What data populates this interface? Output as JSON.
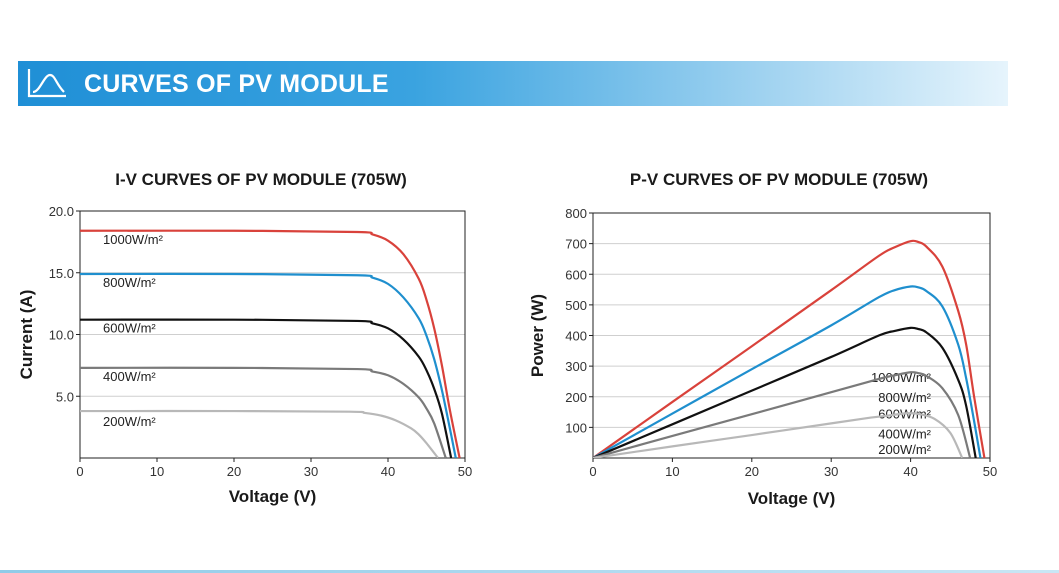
{
  "header": {
    "title": "CURVES OF PV MODULE",
    "icon": "curve-chart-icon"
  },
  "chart_data": [
    {
      "type": "line",
      "title": "I-V CURVES OF PV MODULE (705W)",
      "xlabel": "Voltage (V)",
      "ylabel": "Current (A)",
      "xlim": [
        0,
        50
      ],
      "ylim": [
        0,
        20
      ],
      "xticks": [
        "0",
        "10",
        "20",
        "30",
        "40",
        "50"
      ],
      "yticks": [
        "20.0",
        "15.0",
        "10.0",
        "5.0"
      ],
      "grid": true,
      "series": [
        {
          "name": "1000W/m²",
          "color": "#d9423b",
          "x": [
            0,
            20,
            36,
            38,
            40,
            42,
            44,
            45,
            46,
            47,
            48,
            49.3
          ],
          "y": [
            18.4,
            18.4,
            18.3,
            18.1,
            17.6,
            16.5,
            14.5,
            12.8,
            10.5,
            7.5,
            4.0,
            0
          ]
        },
        {
          "name": "800W/m²",
          "color": "#1f8fce",
          "x": [
            0,
            20,
            36,
            38,
            40,
            42,
            44,
            45,
            46,
            47,
            48,
            48.8
          ],
          "y": [
            14.9,
            14.9,
            14.8,
            14.6,
            14.1,
            13.0,
            11.3,
            9.9,
            8.0,
            5.5,
            2.5,
            0
          ]
        },
        {
          "name": "600W/m²",
          "color": "#111111",
          "x": [
            0,
            20,
            36,
            38,
            40,
            42,
            44,
            45,
            46,
            47,
            48.2
          ],
          "y": [
            11.2,
            11.2,
            11.1,
            10.9,
            10.5,
            9.6,
            8.2,
            7.1,
            5.6,
            3.6,
            0
          ]
        },
        {
          "name": "400W/m²",
          "color": "#7a7a7a",
          "x": [
            0,
            20,
            36,
            38,
            40,
            42,
            44,
            45,
            46,
            47.5
          ],
          "y": [
            7.3,
            7.3,
            7.2,
            7.0,
            6.7,
            6.0,
            4.9,
            4.0,
            2.8,
            0
          ]
        },
        {
          "name": "200W/m²",
          "color": "#b8b8b8",
          "x": [
            0,
            20,
            35,
            37,
            39,
            41,
            43,
            44,
            45,
            46.5
          ],
          "y": [
            3.8,
            3.8,
            3.75,
            3.65,
            3.45,
            3.05,
            2.4,
            1.9,
            1.2,
            0
          ]
        }
      ]
    },
    {
      "type": "line",
      "title": "P-V CURVES OF PV MODULE (705W)",
      "xlabel": "Voltage (V)",
      "ylabel": "Power (W)",
      "xlim": [
        0,
        50
      ],
      "ylim": [
        0,
        800
      ],
      "xticks": [
        "0",
        "10",
        "20",
        "30",
        "40",
        "50"
      ],
      "yticks": [
        "800",
        "700",
        "600",
        "500",
        "400",
        "300",
        "200",
        "100"
      ],
      "grid": true,
      "series": [
        {
          "name": "1000W/m²",
          "color": "#d9423b",
          "x": [
            0,
            10,
            20,
            30,
            36,
            38,
            40,
            41,
            42,
            44,
            46,
            47,
            48,
            49.3
          ],
          "y": [
            0,
            183,
            365,
            548,
            660,
            688,
            708,
            705,
            690,
            625,
            480,
            370,
            200,
            0
          ]
        },
        {
          "name": "800W/m²",
          "color": "#1f8fce",
          "x": [
            0,
            10,
            20,
            30,
            36,
            38,
            40,
            41,
            42,
            44,
            46,
            47,
            48,
            48.8
          ],
          "y": [
            0,
            145,
            290,
            433,
            525,
            548,
            560,
            557,
            545,
            495,
            370,
            260,
            120,
            0
          ]
        },
        {
          "name": "600W/m²",
          "color": "#111111",
          "x": [
            0,
            10,
            20,
            30,
            36,
            38,
            40,
            41,
            42,
            44,
            46,
            47,
            48.2
          ],
          "y": [
            0,
            110,
            220,
            330,
            400,
            415,
            425,
            421,
            410,
            360,
            255,
            170,
            0
          ]
        },
        {
          "name": "400W/m²",
          "color": "#7a7a7a",
          "x": [
            0,
            10,
            20,
            30,
            36,
            38,
            40,
            41,
            42,
            44,
            46,
            47.5
          ],
          "y": [
            0,
            72,
            143,
            215,
            258,
            270,
            280,
            277,
            268,
            228,
            140,
            0
          ]
        },
        {
          "name": "200W/m²",
          "color": "#b8b8b8",
          "x": [
            0,
            10,
            20,
            30,
            35,
            37,
            39,
            40,
            41,
            43,
            45,
            46.5
          ],
          "y": [
            0,
            38,
            75,
            113,
            132,
            138,
            145,
            146,
            144,
            128,
            82,
            0
          ]
        }
      ]
    }
  ]
}
